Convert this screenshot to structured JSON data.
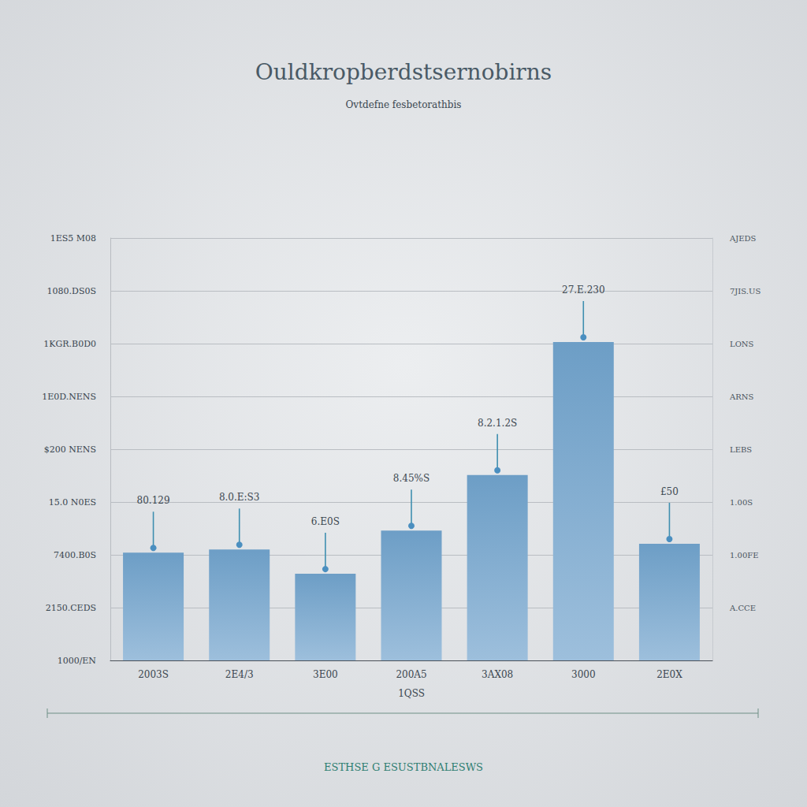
{
  "chart_data": {
    "type": "bar",
    "title": "Ouldkropberdstsernobirns",
    "subtitle": "Ovtdefne fesbetorathbis",
    "x_label": "1QSS",
    "footer": "ESTHSE G ESUSTBNALESWS",
    "categories": [
      "2003S",
      "2E4/3",
      "3E00",
      "200A5",
      "3AX08",
      "3000",
      "2E0X"
    ],
    "values": [
      2.04,
      2.1,
      1.64,
      2.46,
      3.51,
      6.03,
      2.21
    ],
    "annotations": [
      "80.129",
      "8.0.E:S3",
      "6.E0S",
      "8.45%S",
      "8.2.1.2S",
      "27.E.230",
      "£50"
    ],
    "color": "#6d9ec6",
    "ylim": [
      0,
      8
    ],
    "yticks": [
      {
        "value": 0,
        "label": "1000/EN"
      },
      {
        "value": 1,
        "label": "2150.CEDS"
      },
      {
        "value": 2,
        "label": "7400.B0S"
      },
      {
        "value": 3,
        "label": "15.0 N0ES"
      },
      {
        "value": 4,
        "label": "$200 NENS"
      },
      {
        "value": 5,
        "label": "1E0D.NENS"
      },
      {
        "value": 6,
        "label": "1KGR.B0D0"
      },
      {
        "value": 7,
        "label": "1080.DS0S"
      },
      {
        "value": 8,
        "label": "1ES5 M08"
      }
    ],
    "y2lim": [
      0,
      8
    ],
    "y2ticks": [
      {
        "value": 1,
        "label": "A.CCE"
      },
      {
        "value": 2,
        "label": "1.00FE"
      },
      {
        "value": 3,
        "label": "1.00S"
      },
      {
        "value": 4,
        "label": "LEBS"
      },
      {
        "value": 5,
        "label": "ARNS"
      },
      {
        "value": 6,
        "label": "LONS"
      },
      {
        "value": 7,
        "label": "7JIS.US"
      },
      {
        "value": 8,
        "label": "AJEDS"
      }
    ],
    "grid": true
  }
}
